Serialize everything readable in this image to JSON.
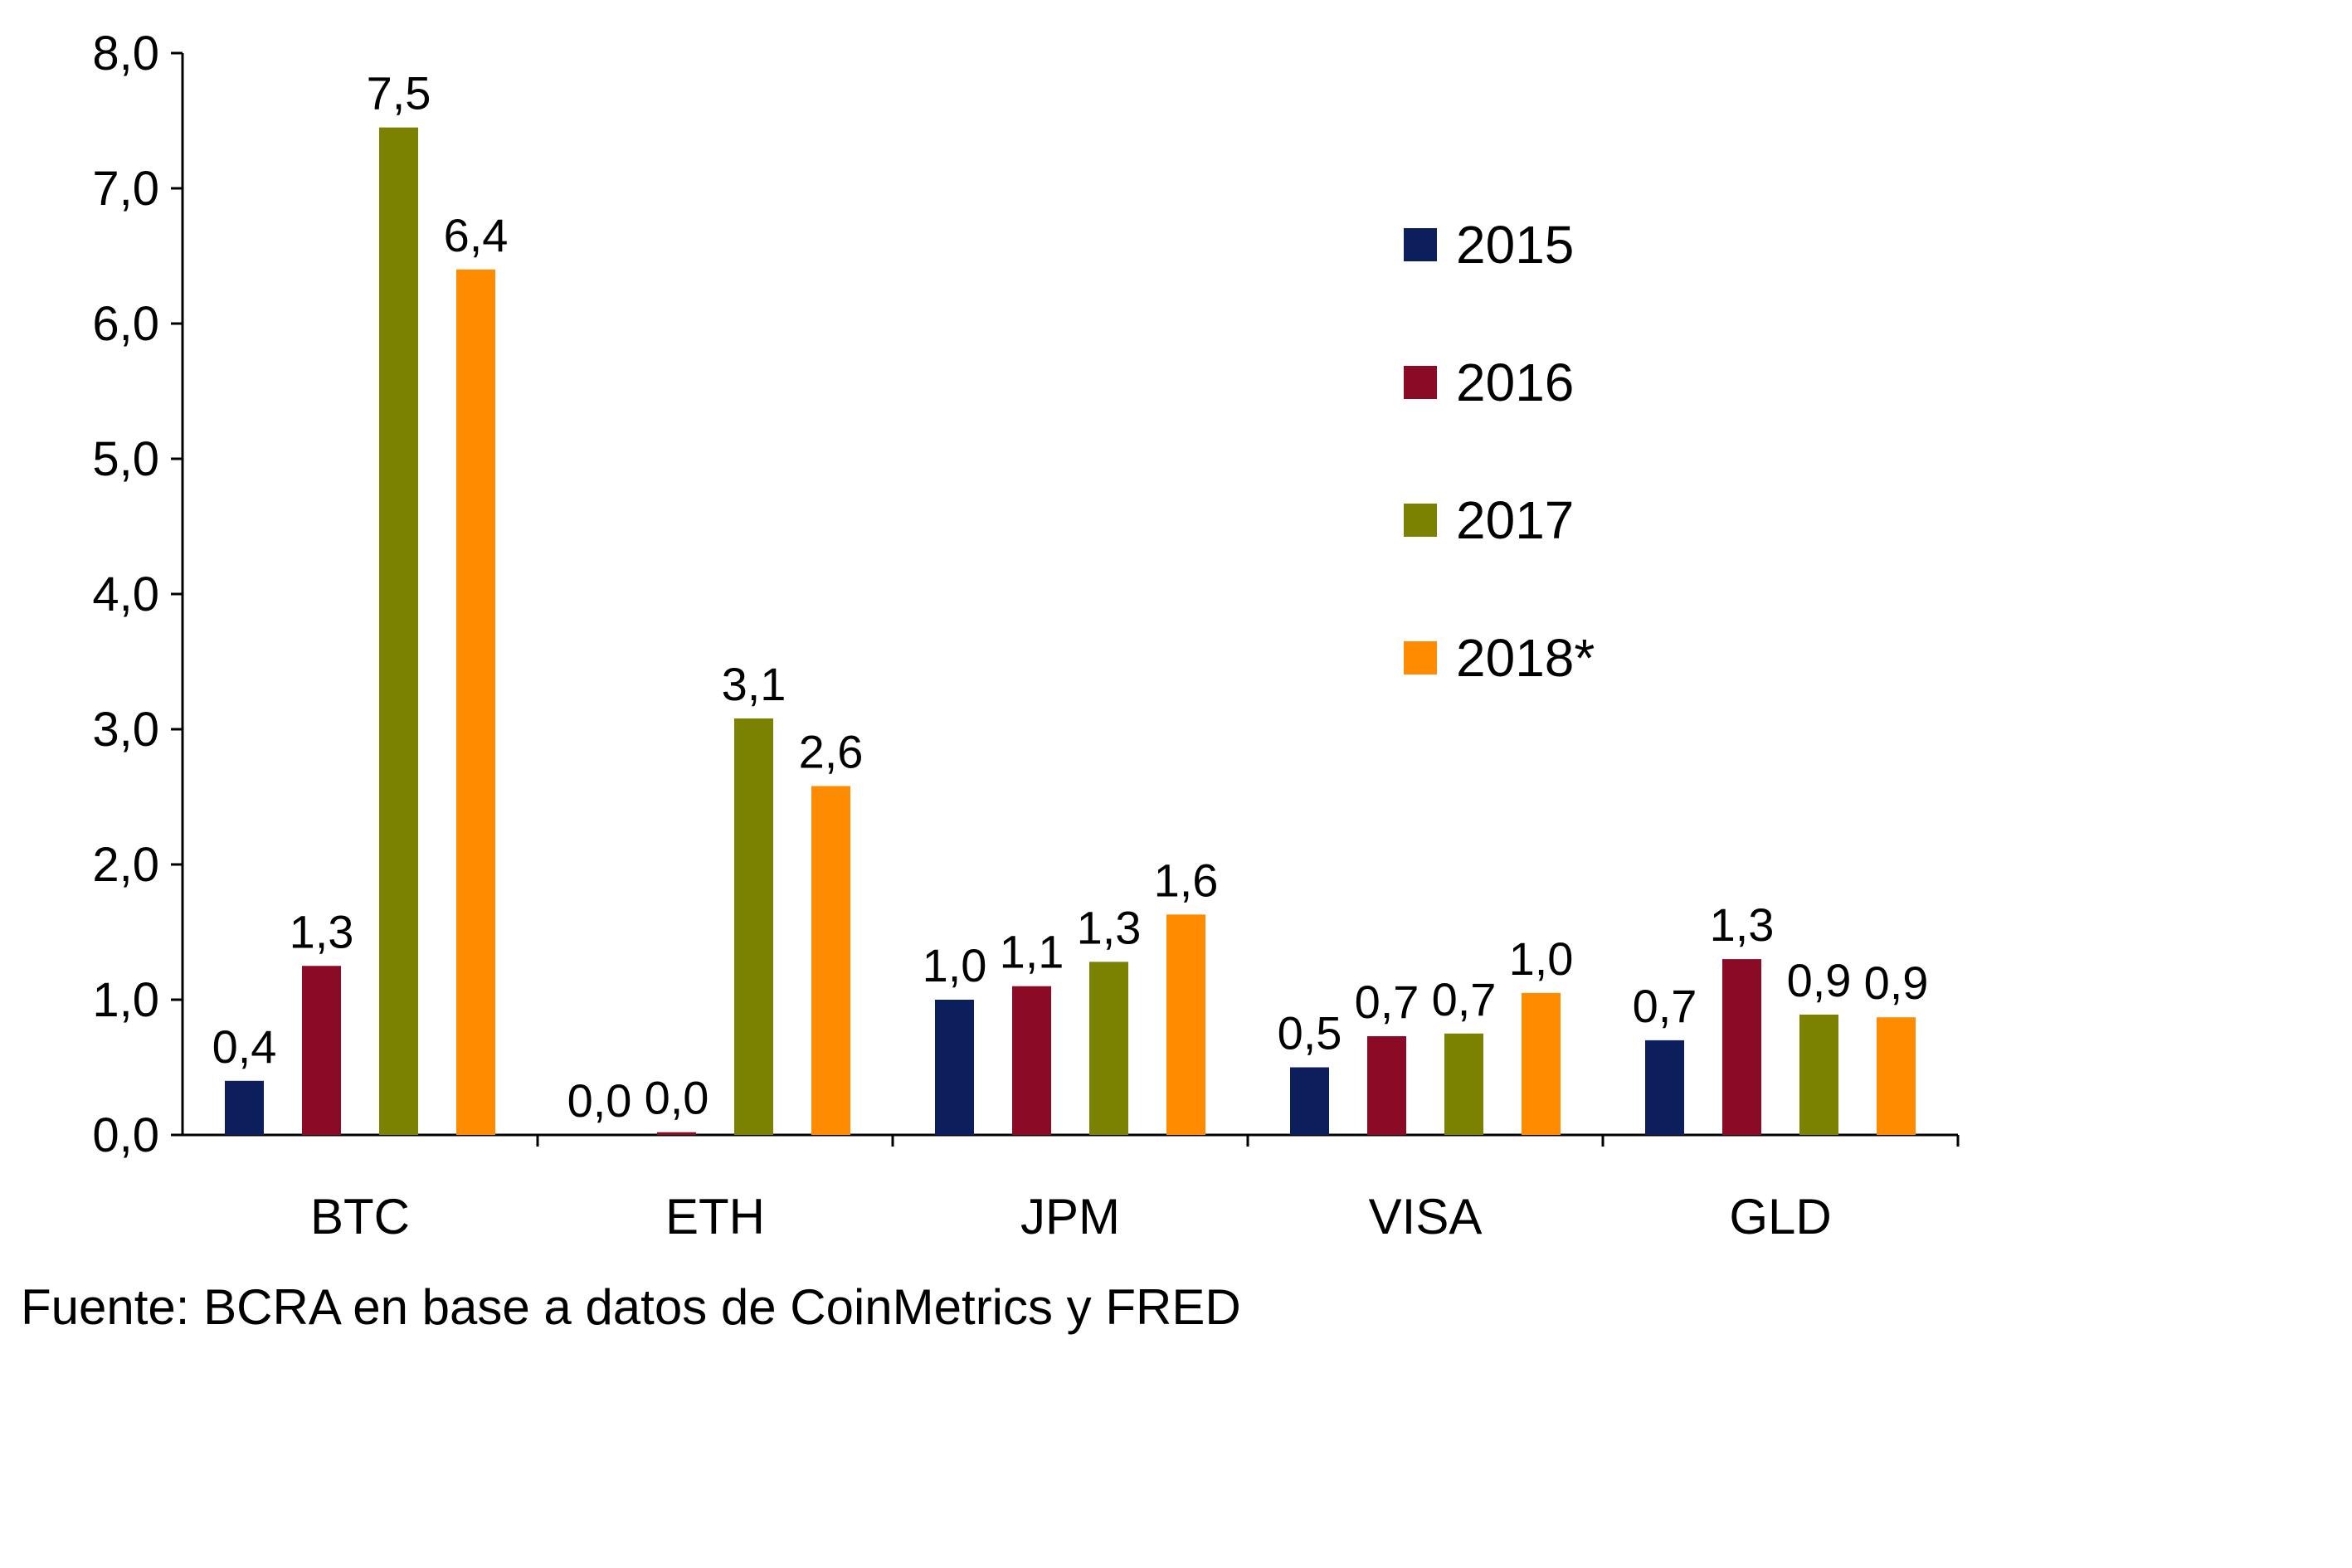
{
  "chart_data": {
    "type": "bar",
    "title": "",
    "xlabel": "",
    "ylabel": "",
    "ylim": [
      0,
      8
    ],
    "yticks": [
      0,
      1,
      2,
      3,
      4,
      5,
      6,
      7,
      8
    ],
    "ytick_labels": [
      "0,0",
      "1,0",
      "2,0",
      "3,0",
      "4,0",
      "5,0",
      "6,0",
      "7,0",
      "8,0"
    ],
    "grid": false,
    "legend_position": "top-right",
    "categories": [
      "BTC",
      "ETH",
      "JPM",
      "VISA",
      "GLD"
    ],
    "series": [
      {
        "name": "2015",
        "color": "#0c1f5c",
        "values": [
          0.4,
          0.0,
          1.0,
          0.5,
          0.7
        ],
        "labels": [
          "0,4",
          "0,0",
          "1,0",
          "0,5",
          "0,7"
        ]
      },
      {
        "name": "2016",
        "color": "#8b0a25",
        "values": [
          1.25,
          0.02,
          1.1,
          0.73,
          1.3
        ],
        "labels": [
          "1,3",
          "0,0",
          "1,1",
          "0,7",
          "1,3"
        ]
      },
      {
        "name": "2017",
        "color": "#7b8100",
        "values": [
          7.45,
          3.08,
          1.28,
          0.75,
          0.89
        ],
        "labels": [
          "7,5",
          "3,1",
          "1,3",
          "0,7",
          "0,9"
        ]
      },
      {
        "name": "2018*",
        "color": "#ff8b00",
        "values": [
          6.4,
          2.58,
          1.63,
          1.05,
          0.87
        ],
        "labels": [
          "6,4",
          "2,6",
          "1,6",
          "1,0",
          "0,9"
        ]
      }
    ]
  },
  "source": "Fuente: BCRA en base a datos de CoinMetrics y FRED"
}
